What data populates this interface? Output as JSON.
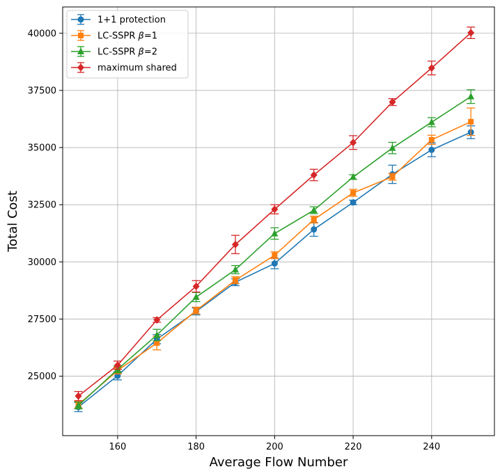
{
  "chart_data": {
    "type": "line",
    "xlabel": "Average Flow Number",
    "ylabel": "Total Cost",
    "xlim": [
      146,
      256
    ],
    "ylim": [
      22400,
      41150
    ],
    "xticks": [
      160,
      180,
      200,
      220,
      240
    ],
    "yticks": [
      25000,
      27500,
      30000,
      32500,
      35000,
      37500,
      40000
    ],
    "grid": true,
    "legend_position": "top-left",
    "x": [
      150,
      160,
      170,
      180,
      190,
      200,
      210,
      220,
      230,
      240,
      250
    ],
    "series": [
      {
        "name": "1+1 protection",
        "legend_parts": [
          "1+1 protection"
        ],
        "color": "#1f77b4",
        "marker": "circle",
        "values": [
          23650,
          25020,
          26620,
          27830,
          29110,
          29930,
          31420,
          32600,
          33830,
          34900,
          35670
        ],
        "errors": [
          200,
          180,
          200,
          150,
          150,
          230,
          300,
          100,
          400,
          300,
          280
        ]
      },
      {
        "name": "LC-SSPR β=1",
        "legend_parts": [
          "LC-SSPR ",
          "β",
          "=1"
        ],
        "color": "#ff7f0e",
        "marker": "square",
        "values": [
          23760,
          25250,
          26450,
          27870,
          29200,
          30290,
          31850,
          33020,
          33720,
          35340,
          36130
        ],
        "errors": [
          150,
          150,
          300,
          150,
          150,
          150,
          150,
          150,
          150,
          200,
          600
        ]
      },
      {
        "name": "LC-SSPR β=2",
        "legend_parts": [
          "LC-SSPR ",
          "β",
          "=2"
        ],
        "color": "#2ca02c",
        "marker": "triangle",
        "values": [
          23720,
          25300,
          26800,
          28460,
          29660,
          31240,
          32260,
          33710,
          34980,
          36110,
          37230
        ],
        "errors": [
          150,
          150,
          250,
          200,
          180,
          250,
          150,
          100,
          250,
          200,
          300
        ]
      },
      {
        "name": "maximum shared",
        "legend_parts": [
          "maximum shared"
        ],
        "color": "#d62728",
        "marker": "diamond",
        "values": [
          24130,
          25480,
          27460,
          28930,
          30760,
          32300,
          33800,
          35220,
          36990,
          38480,
          40020
        ],
        "errors": [
          200,
          180,
          100,
          250,
          400,
          200,
          250,
          300,
          150,
          300,
          250
        ]
      }
    ]
  }
}
